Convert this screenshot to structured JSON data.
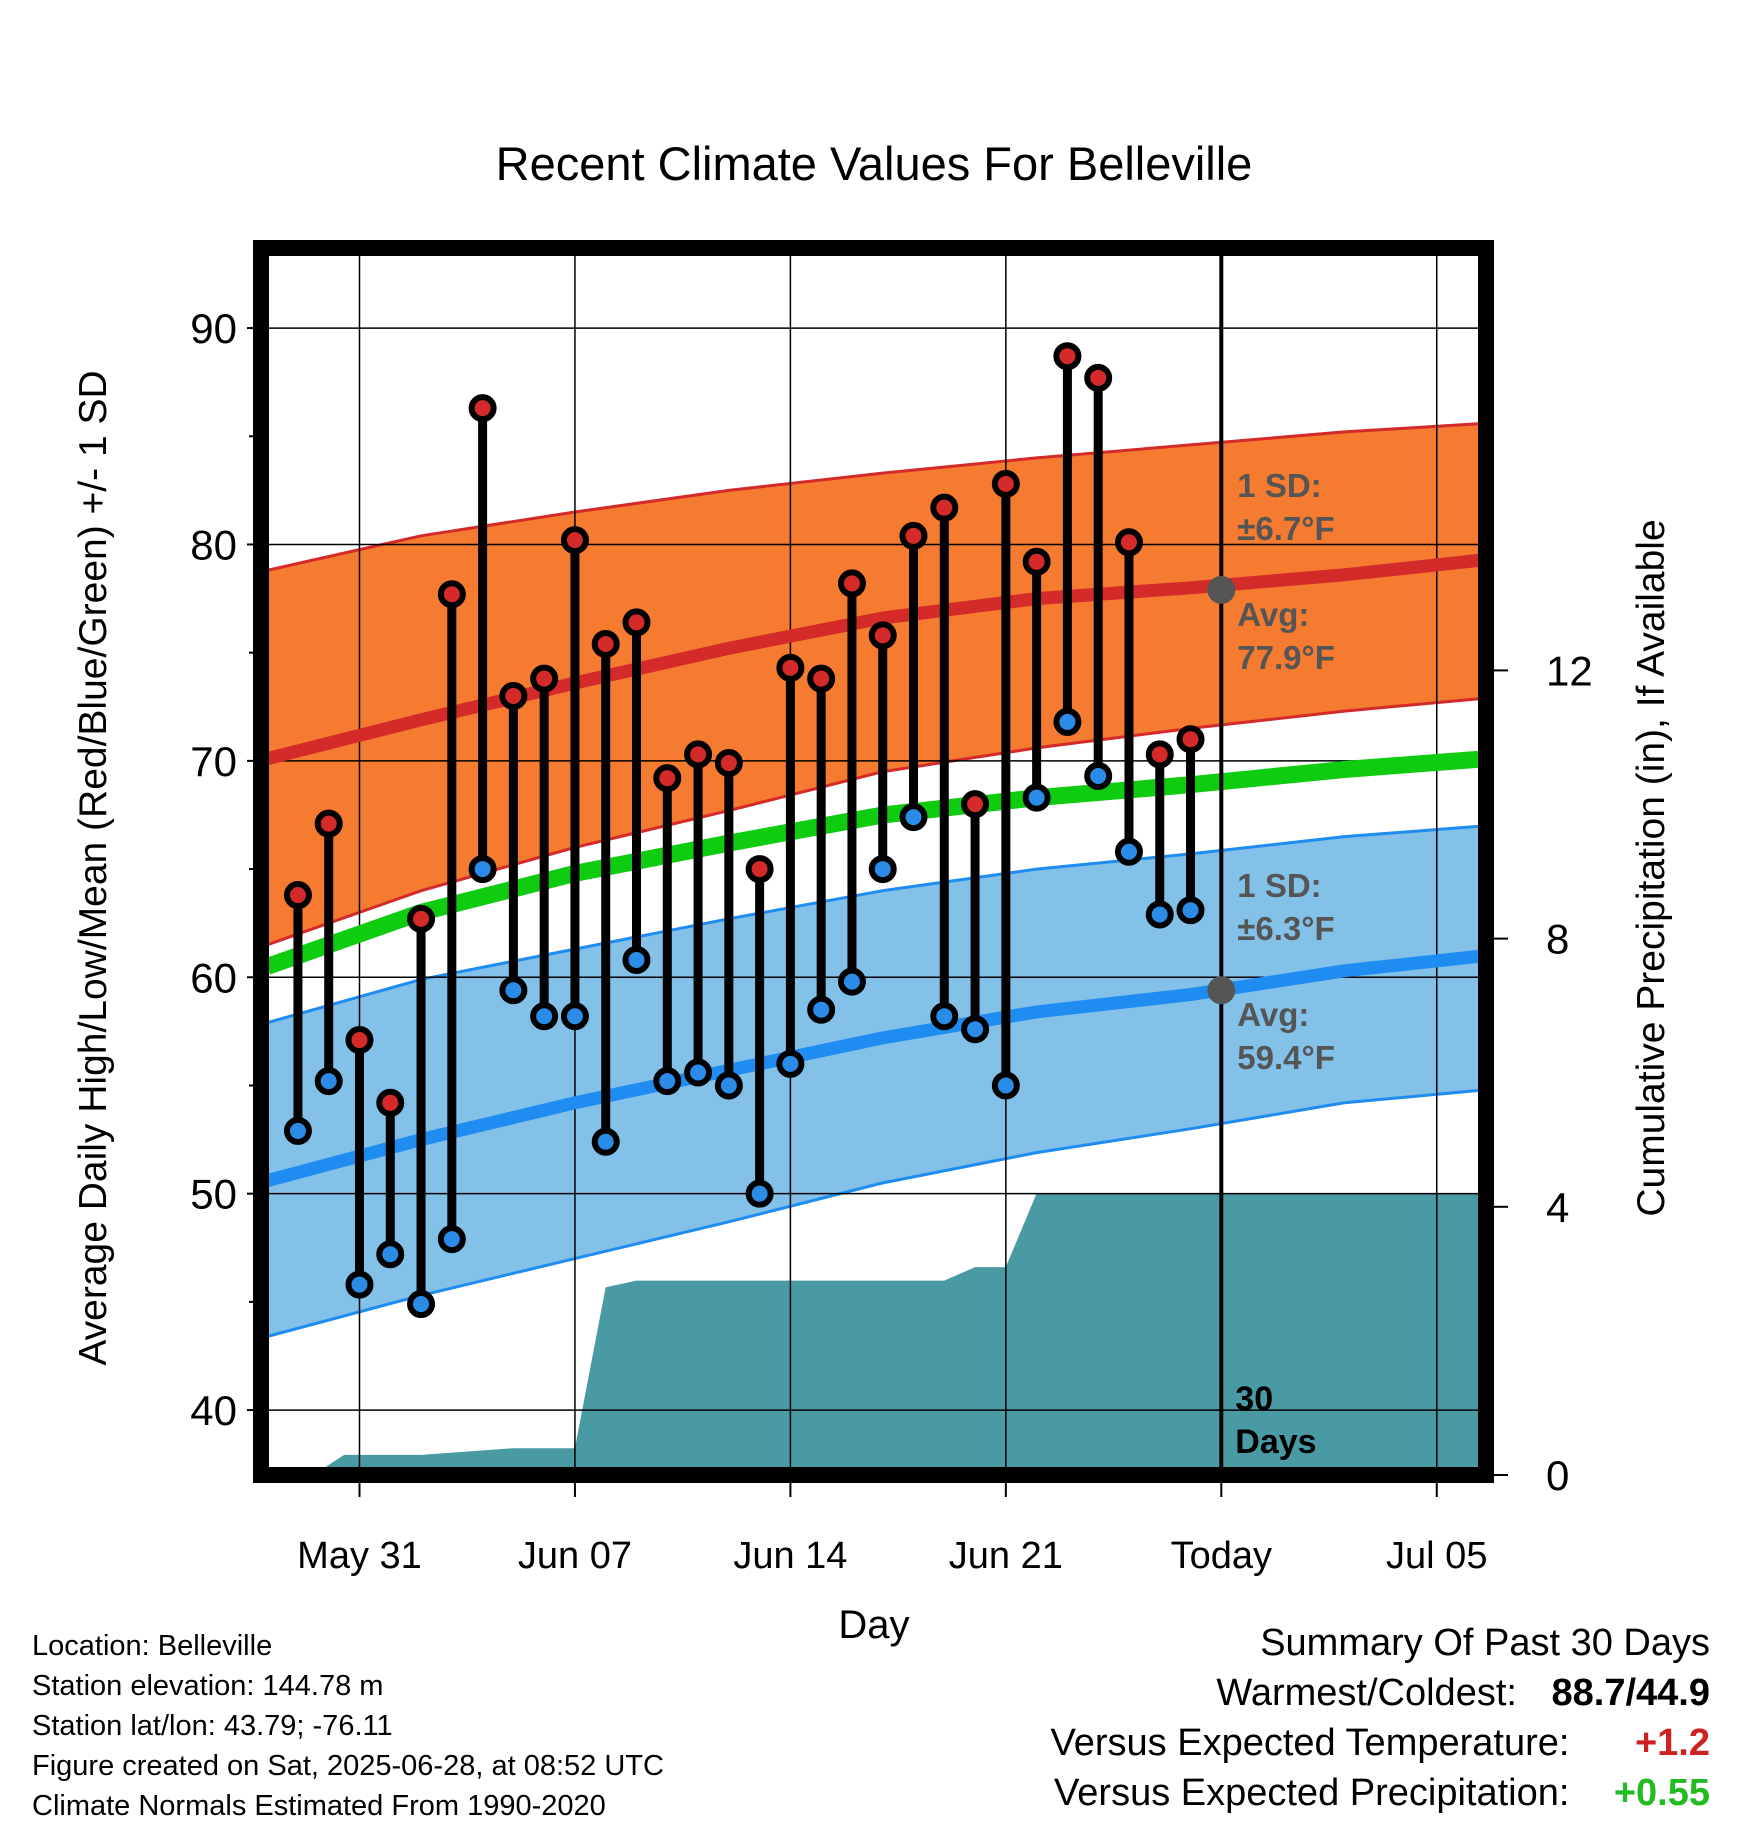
{
  "chart_data": {
    "type": "line",
    "title": "Recent Climate Values For Belleville",
    "xlabel": "Day",
    "ylabel": "Average Daily High/Low/Mean (Red/Blue/Green) +/- 1 SD",
    "y2label": "Cumulative Precipitation (in), If Available",
    "x_tick_labels": [
      "May 31",
      "Jun 07",
      "Jun 14",
      "Jun 21",
      "Today",
      "Jul 05"
    ],
    "x_tick_days": [
      3,
      10,
      17,
      24,
      31,
      38
    ],
    "xlim_days": [
      -0.2,
      39.6
    ],
    "ylim": [
      37.0,
      93.7
    ],
    "y_ticks": [
      40,
      50,
      60,
      70,
      80,
      90
    ],
    "y2lim": [
      0,
      18.3
    ],
    "y2_ticks": [
      0,
      4,
      8,
      12
    ],
    "today_day": 31,
    "today_label": "30 Days",
    "grid": true,
    "normals": {
      "days": [
        0,
        5,
        10,
        15,
        20,
        25,
        30,
        35,
        39.6
      ],
      "high_avg": [
        70.1,
        71.9,
        73.6,
        75.2,
        76.6,
        77.5,
        78.0,
        78.6,
        79.3
      ],
      "high_upper": [
        78.8,
        80.4,
        81.5,
        82.5,
        83.3,
        84.0,
        84.6,
        85.2,
        85.6
      ],
      "high_lower": [
        61.5,
        64.0,
        66.0,
        67.7,
        69.5,
        70.6,
        71.5,
        72.3,
        72.9
      ],
      "mean_avg": [
        60.5,
        63.0,
        64.8,
        66.2,
        67.5,
        68.3,
        68.9,
        69.6,
        70.1
      ],
      "low_avg": [
        50.6,
        52.5,
        54.2,
        55.7,
        57.2,
        58.4,
        59.2,
        60.3,
        61.0
      ],
      "low_upper": [
        57.9,
        59.9,
        61.3,
        62.7,
        64.0,
        65.0,
        65.7,
        66.5,
        67.0
      ],
      "low_lower": [
        43.4,
        45.3,
        47.0,
        48.7,
        50.5,
        51.9,
        53.0,
        54.2,
        54.8
      ]
    },
    "annotations": {
      "high_sd": "1 SD:",
      "high_sd_value": "±6.7°F",
      "high_avg_label": "Avg:",
      "high_avg_value": "77.9°F",
      "high_avg_today": 77.9,
      "low_sd": "1 SD:",
      "low_sd_value": "±6.3°F",
      "low_avg_label": "Avg:",
      "low_avg_value": "59.4°F",
      "low_avg_today": 59.4
    },
    "daily_days": [
      1,
      2,
      3,
      4,
      5,
      6,
      7,
      8,
      9,
      10,
      11,
      12,
      13,
      14,
      15,
      16,
      17,
      18,
      19,
      20,
      21,
      22,
      23,
      24,
      25,
      26,
      27,
      28,
      29,
      30
    ],
    "daily_high": [
      63.8,
      67.1,
      57.1,
      54.2,
      62.7,
      77.7,
      86.3,
      73.0,
      73.8,
      80.2,
      75.4,
      76.4,
      69.2,
      70.3,
      69.9,
      65.0,
      74.3,
      73.8,
      78.2,
      75.8,
      80.4,
      81.7,
      68.0,
      82.8,
      79.2,
      88.7,
      87.7,
      80.1,
      70.3,
      71.0
    ],
    "daily_low": [
      52.9,
      55.2,
      45.8,
      47.2,
      44.9,
      47.9,
      65.0,
      59.4,
      58.2,
      58.2,
      52.4,
      60.8,
      55.2,
      55.6,
      55.0,
      50.0,
      56.0,
      58.5,
      59.8,
      65.0,
      67.4,
      58.2,
      57.6,
      55.0,
      68.3,
      71.8,
      69.3,
      65.8,
      62.9,
      63.1
    ],
    "precip": {
      "days": [
        -0.2,
        1.5,
        2.5,
        5,
        8,
        10,
        11,
        12,
        17,
        22,
        23,
        24,
        25,
        31,
        39.6
      ],
      "values": [
        0,
        0,
        0.3,
        0.3,
        0.4,
        0.4,
        2.8,
        2.9,
        2.9,
        2.9,
        3.1,
        3.1,
        4.2,
        4.2,
        4.2
      ]
    }
  },
  "location_info": {
    "location": "Location: Belleville",
    "elevation": "Station elevation: 144.78 m",
    "latlon": "Station lat/lon: 43.79; -76.11",
    "created": "Figure created on Sat, 2025-06-28, at 08:52 UTC",
    "normals": "Climate Normals Estimated From 1990-2020"
  },
  "summary": {
    "title": "Summary Of Past 30 Days",
    "warmest_coldest_label": "Warmest/Coldest:",
    "warmest_coldest_value": "88.7/44.9",
    "temp_label": "Versus Expected Temperature:",
    "temp_value": "+1.2",
    "precip_label": "Versus Expected Precipitation:",
    "precip_value": "+0.55"
  },
  "colors": {
    "high_band": "#f47b30",
    "high_line": "#d42a2a",
    "low_band": "#83c1e8",
    "low_line": "#1e8cf0",
    "mean_line": "#10cc10",
    "precip_fill": "#4a9aa3",
    "annotation": "#555555",
    "high_dot": "#d42a2a",
    "low_dot": "#2a8ce6",
    "temp_positive": "#cc2222",
    "precip_positive": "#22bb22"
  }
}
